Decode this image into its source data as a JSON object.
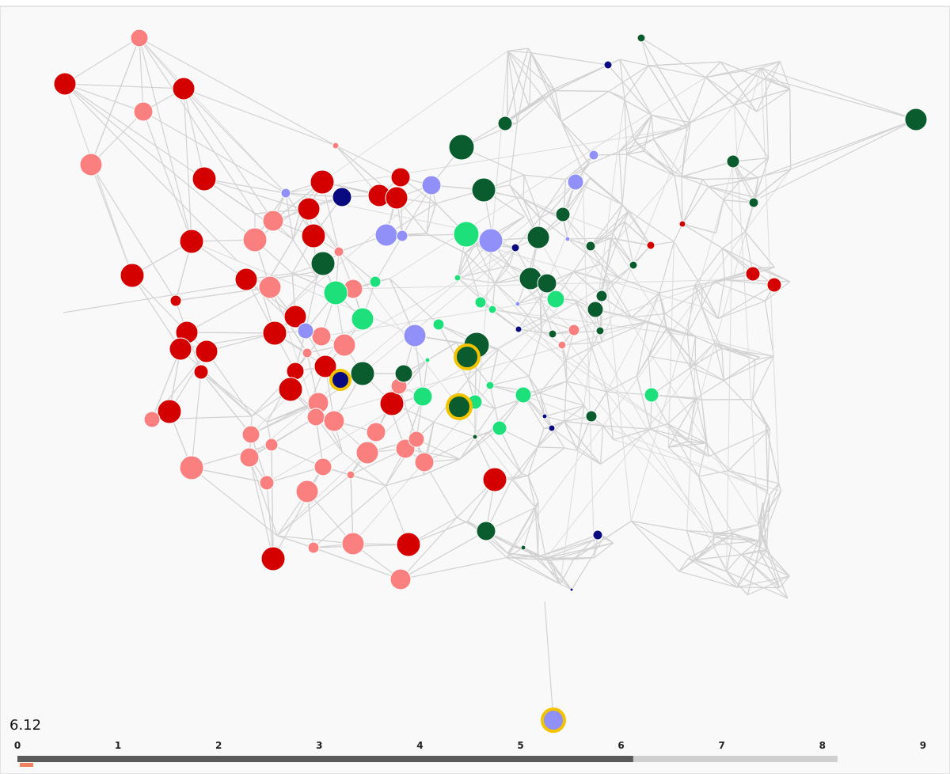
{
  "timeline": {
    "value": 6.12,
    "ticks": [
      0,
      1,
      2,
      3,
      4,
      5,
      6,
      7,
      8,
      9
    ]
  }
}
